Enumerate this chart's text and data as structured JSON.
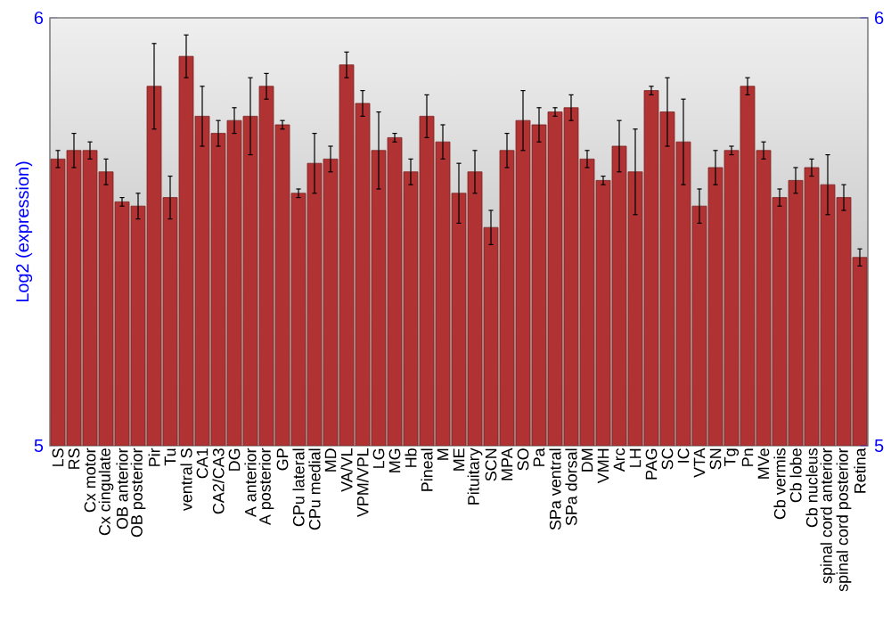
{
  "chart_data": {
    "type": "bar",
    "ylabel": "Log2 (expression)",
    "categories": [
      "LS",
      "RS",
      "Cx motor",
      "Cx cingulate",
      "OB anterior",
      "OB posterior",
      "Pir",
      "Tu",
      "ventral S",
      "CA1",
      "CA2/CA3",
      "DG",
      "A anterior",
      "A posterior",
      "GP",
      "CPu lateral",
      "CPu medial",
      "MD",
      "VA/VL",
      "VPM/VPL",
      "LG",
      "MG",
      "Hb",
      "Pineal",
      "M",
      "ME",
      "Pituitary",
      "SCN",
      "MPA",
      "SO",
      "Pa",
      "SPa ventral",
      "SPa dorsal",
      "DM",
      "VMH",
      "Arc",
      "LH",
      "PAG",
      "SC",
      "IC",
      "VTA",
      "SN",
      "Tg",
      "Pn",
      "MVe",
      "Cb vermis",
      "Cb lobe",
      "Cb nucleus",
      "spinal cord anterior",
      "spinal cord posterior",
      "Retina"
    ],
    "values": [
      5.67,
      5.69,
      5.69,
      5.64,
      5.57,
      5.56,
      5.84,
      5.58,
      5.91,
      5.77,
      5.73,
      5.76,
      5.77,
      5.84,
      5.75,
      5.59,
      5.66,
      5.67,
      5.89,
      5.8,
      5.69,
      5.72,
      5.64,
      5.77,
      5.71,
      5.59,
      5.64,
      5.51,
      5.69,
      5.76,
      5.75,
      5.78,
      5.79,
      5.67,
      5.62,
      5.7,
      5.64,
      5.83,
      5.78,
      5.71,
      5.56,
      5.65,
      5.69,
      5.84,
      5.69,
      5.58,
      5.62,
      5.65,
      5.61,
      5.58,
      5.44
    ],
    "errors": [
      0.02,
      0.04,
      0.02,
      0.03,
      0.01,
      0.03,
      0.1,
      0.05,
      0.05,
      0.07,
      0.03,
      0.03,
      0.09,
      0.03,
      0.01,
      0.01,
      0.07,
      0.03,
      0.03,
      0.03,
      0.09,
      0.01,
      0.03,
      0.05,
      0.04,
      0.07,
      0.05,
      0.04,
      0.04,
      0.07,
      0.04,
      0.01,
      0.03,
      0.02,
      0.01,
      0.06,
      0.1,
      0.01,
      0.08,
      0.1,
      0.04,
      0.04,
      0.01,
      0.02,
      0.02,
      0.02,
      0.03,
      0.02,
      0.07,
      0.03,
      0.02
    ],
    "color": "#b03232",
    "ylim": [
      5,
      6
    ],
    "yticks": [
      5,
      6
    ],
    "y2lim": [
      5,
      6
    ],
    "y2ticks": [
      5,
      6
    ]
  }
}
